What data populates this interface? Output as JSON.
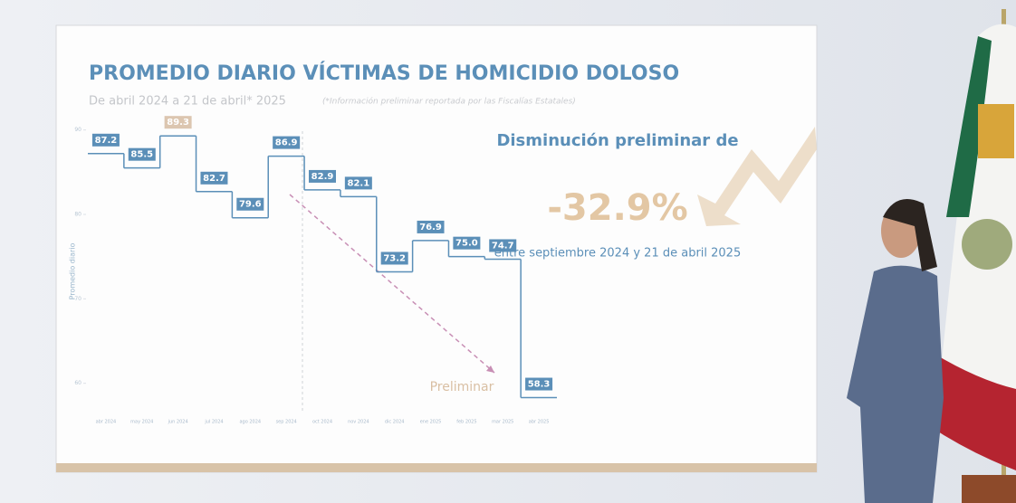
{
  "chart_data": {
    "type": "step",
    "title": "PROMEDIO DIARIO VÍCTIMAS DE HOMICIDIO DOLOSO",
    "subtitle": "De abril 2024 a 21 de abril* 2025",
    "note": "(*Información preliminar reportada por las Fiscalías Estatales)",
    "y_label": "Promedio diario",
    "categories": [
      "abr 2024",
      "may 2024",
      "jun 2024",
      "jul 2024",
      "ago 2024",
      "sep 2024",
      "oct 2024",
      "nov 2024",
      "dic 2024",
      "ene 2025",
      "feb 2025",
      "mar 2025",
      "abr 2025"
    ],
    "values": [
      87.2,
      85.5,
      89.3,
      82.7,
      79.6,
      86.9,
      82.9,
      82.1,
      73.2,
      76.9,
      75.0,
      74.7,
      58.3
    ],
    "value_labels": [
      "87.2",
      "85.5",
      "89.3",
      "82.7",
      "79.6",
      "86.9",
      "82.9",
      "82.1",
      "73.2",
      "76.9",
      "75.0",
      "74.7",
      "58.3"
    ],
    "color": "#5b8fb8",
    "highlight_color": "#dcc6b0",
    "ylim": [
      56,
      92
    ],
    "yticks": [
      60,
      70,
      80,
      90
    ],
    "trend_label": "Preliminar",
    "callout": {
      "heading": "Disminución preliminar de",
      "figure": "-32.9%",
      "period": "entre septiembre 2024 y 21 de abril 2025"
    }
  }
}
